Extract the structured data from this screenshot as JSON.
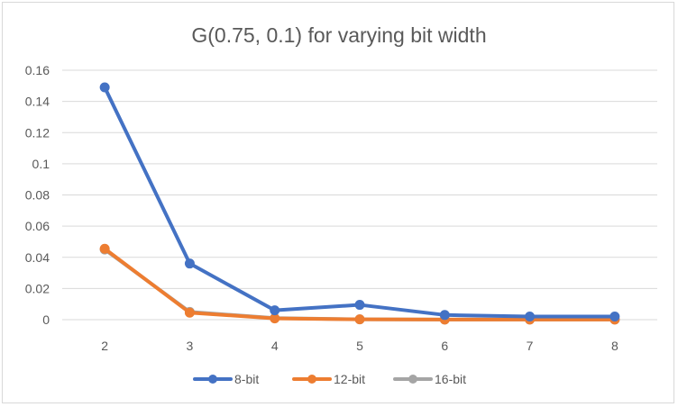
{
  "chart_data": {
    "type": "line",
    "title": "G(0.75, 0.1) for varying bit width",
    "xlabel": "",
    "ylabel": "",
    "x": [
      2,
      3,
      4,
      5,
      6,
      7,
      8
    ],
    "x_tick_labels": [
      "2",
      "3",
      "4",
      "5",
      "6",
      "7",
      "8"
    ],
    "ylim": [
      0,
      0.16
    ],
    "y_ticks": [
      0,
      0.02,
      0.04,
      0.06,
      0.08,
      0.1,
      0.12,
      0.14,
      0.16
    ],
    "y_tick_labels": [
      "0",
      "0.02",
      "0.04",
      "0.06",
      "0.08",
      "0.1",
      "0.12",
      "0.14",
      "0.16"
    ],
    "grid": true,
    "legend_position": "bottom",
    "series": [
      {
        "name": "8-bit",
        "color": "#4472c4",
        "values": [
          0.149,
          0.036,
          0.006,
          0.0095,
          0.003,
          0.002,
          0.002
        ]
      },
      {
        "name": "12-bit",
        "color": "#ed7d31",
        "values": [
          0.0455,
          0.0045,
          0.0008,
          0.0002,
          0.0001,
          0.0001,
          0.0001
        ]
      },
      {
        "name": "16-bit",
        "color": "#a5a5a5",
        "values": [
          0.045,
          0.005,
          0.001,
          0.0002,
          0.0001,
          0.0001,
          0.0001
        ]
      }
    ]
  }
}
